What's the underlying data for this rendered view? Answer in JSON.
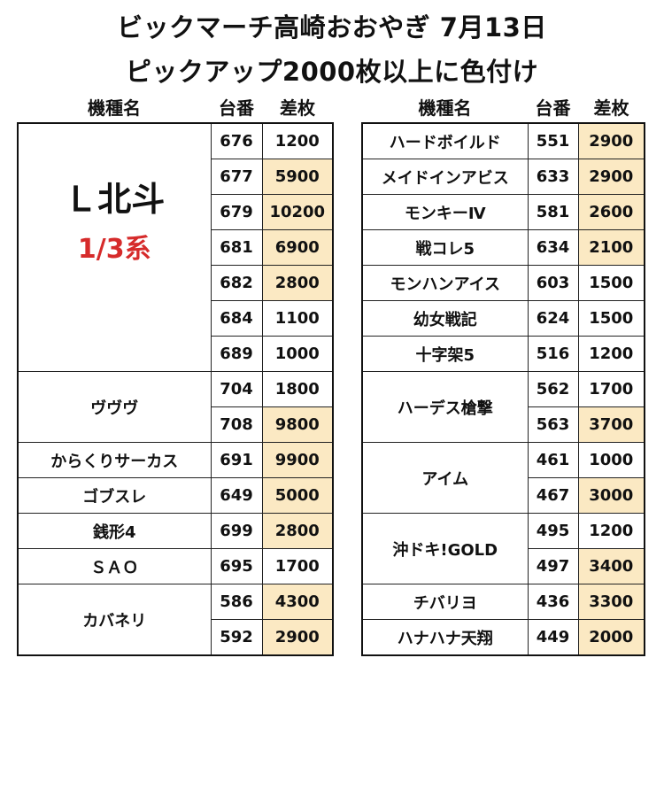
{
  "header": {
    "title_line1": "ビックマーチ高崎おおやぎ 7月13日",
    "title_line2": "ピックアップ2000枚以上に色付け"
  },
  "columns": {
    "name": "機種名",
    "machine": "台番",
    "diff": "差枚"
  },
  "colors": {
    "highlight": "#fbe9c3",
    "accent_red": "#d62b2b"
  },
  "left_table": {
    "groups": [
      {
        "name": "Ｌ北斗",
        "sub": "1/3系",
        "rows": [
          {
            "machine": "676",
            "diff": "1200",
            "hl": false
          },
          {
            "machine": "677",
            "diff": "5900",
            "hl": true
          },
          {
            "machine": "679",
            "diff": "10200",
            "hl": true
          },
          {
            "machine": "681",
            "diff": "6900",
            "hl": true
          },
          {
            "machine": "682",
            "diff": "2800",
            "hl": true
          },
          {
            "machine": "684",
            "diff": "1100",
            "hl": false
          },
          {
            "machine": "689",
            "diff": "1000",
            "hl": false
          }
        ]
      },
      {
        "name": "ヴヴヴ",
        "rows": [
          {
            "machine": "704",
            "diff": "1800",
            "hl": false
          },
          {
            "machine": "708",
            "diff": "9800",
            "hl": true
          }
        ]
      },
      {
        "name": "からくりサーカス",
        "rows": [
          {
            "machine": "691",
            "diff": "9900",
            "hl": true
          }
        ]
      },
      {
        "name": "ゴブスレ",
        "rows": [
          {
            "machine": "649",
            "diff": "5000",
            "hl": true
          }
        ]
      },
      {
        "name": "銭形4",
        "rows": [
          {
            "machine": "699",
            "diff": "2800",
            "hl": true
          }
        ]
      },
      {
        "name": "ＳＡＯ",
        "rows": [
          {
            "machine": "695",
            "diff": "1700",
            "hl": false
          }
        ]
      },
      {
        "name": "カバネリ",
        "rows": [
          {
            "machine": "586",
            "diff": "4300",
            "hl": true
          },
          {
            "machine": "592",
            "diff": "2900",
            "hl": true
          }
        ]
      }
    ]
  },
  "right_table": {
    "groups": [
      {
        "name": "ハードボイルド",
        "rows": [
          {
            "machine": "551",
            "diff": "2900",
            "hl": true
          }
        ]
      },
      {
        "name": "メイドインアビス",
        "rows": [
          {
            "machine": "633",
            "diff": "2900",
            "hl": true
          }
        ]
      },
      {
        "name": "モンキーⅣ",
        "rows": [
          {
            "machine": "581",
            "diff": "2600",
            "hl": true
          }
        ]
      },
      {
        "name": "戦コレ5",
        "rows": [
          {
            "machine": "634",
            "diff": "2100",
            "hl": true
          }
        ]
      },
      {
        "name": "モンハンアイス",
        "rows": [
          {
            "machine": "603",
            "diff": "1500",
            "hl": false
          }
        ]
      },
      {
        "name": "幼女戦記",
        "rows": [
          {
            "machine": "624",
            "diff": "1500",
            "hl": false
          }
        ]
      },
      {
        "name": "十字架5",
        "rows": [
          {
            "machine": "516",
            "diff": "1200",
            "hl": false
          }
        ]
      },
      {
        "name": "ハーデス槍撃",
        "rows": [
          {
            "machine": "562",
            "diff": "1700",
            "hl": false
          },
          {
            "machine": "563",
            "diff": "3700",
            "hl": true
          }
        ]
      },
      {
        "name": "アイム",
        "rows": [
          {
            "machine": "461",
            "diff": "1000",
            "hl": false
          },
          {
            "machine": "467",
            "diff": "3000",
            "hl": true
          }
        ]
      },
      {
        "name": "沖ドキ!GOLD",
        "rows": [
          {
            "machine": "495",
            "diff": "1200",
            "hl": false
          },
          {
            "machine": "497",
            "diff": "3400",
            "hl": true
          }
        ]
      },
      {
        "name": "チバリヨ",
        "rows": [
          {
            "machine": "436",
            "diff": "3300",
            "hl": true
          }
        ]
      },
      {
        "name": "ハナハナ天翔",
        "rows": [
          {
            "machine": "449",
            "diff": "2000",
            "hl": true
          }
        ]
      }
    ]
  }
}
